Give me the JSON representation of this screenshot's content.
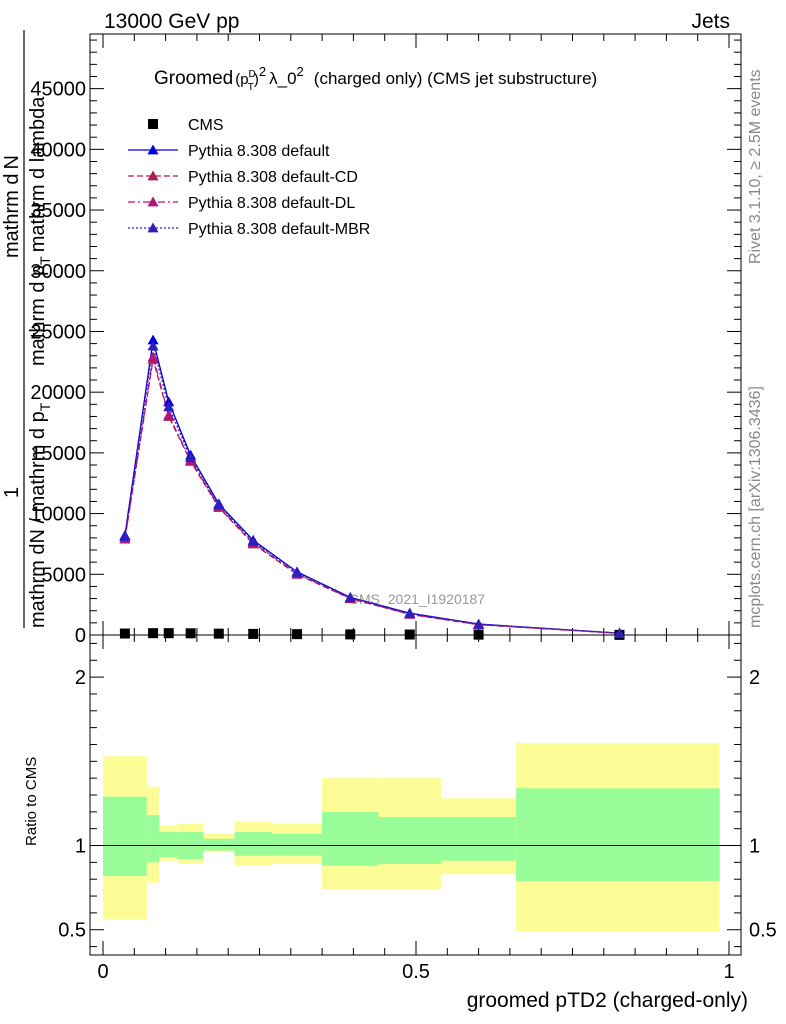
{
  "header": {
    "left": "13000 GeV pp",
    "right": "Jets"
  },
  "side": {
    "rivet": "Rivet 3.1.10, ≥ 2.5M events",
    "mcplots": "mcplots.cern.ch [arXiv:1306.3436]"
  },
  "watermark": "CMS_2021_I1920187",
  "chart_data": [
    {
      "type": "line",
      "panel": "main",
      "title": {
        "prefix": "Groomed",
        "p": "p",
        "sup_d": "D",
        "sub_t": "T",
        "sq": "2",
        "lambda": "λ_0",
        "lambda_exp": "2",
        "suffix": "(charged only) (CMS jet substructure)"
      },
      "ylabel": {
        "numer": "1",
        "denom": "mathrm dN / mathrm d p",
        "denom_sub": "T",
        "line2_a": "mathrm d",
        "line2_b": "N",
        "line3": "mathrm d p",
        "line3_sub": "T",
        "line3_b": "mathrm d lambda"
      },
      "xlim": [
        0,
        1
      ],
      "ylim": [
        0,
        49500
      ],
      "yticks": [
        0,
        5000,
        10000,
        15000,
        20000,
        25000,
        30000,
        35000,
        40000,
        45000
      ],
      "yticklabels": [
        "0",
        "5000",
        "10000",
        "15000",
        "20000",
        "25000",
        "30000",
        "35000",
        "40000",
        "45000"
      ],
      "legend_position": "top-left",
      "x": [
        0.035,
        0.08,
        0.105,
        0.14,
        0.185,
        0.24,
        0.31,
        0.395,
        0.49,
        0.6,
        0.825
      ],
      "series": [
        {
          "name": "CMS",
          "style": "data",
          "color": "#000000",
          "values": [
            120,
            150,
            150,
            140,
            110,
            90,
            70,
            50,
            40,
            30,
            10
          ]
        },
        {
          "name": "Pythia 8.308 default",
          "style": "solid",
          "color": "#0000dd",
          "values": [
            8200,
            24300,
            19200,
            14800,
            10800,
            7800,
            5200,
            3100,
            1800,
            900,
            150
          ]
        },
        {
          "name": "Pythia 8.308 default-CD",
          "style": "dash",
          "color": "#b01a55",
          "values": [
            7900,
            22700,
            18000,
            14300,
            10500,
            7500,
            5000,
            3000,
            1700,
            850,
            140
          ]
        },
        {
          "name": "Pythia 8.308 default-DL",
          "style": "dashdot",
          "color": "#b0157a",
          "values": [
            7950,
            22900,
            18100,
            14400,
            10600,
            7600,
            5050,
            3020,
            1720,
            860,
            145
          ]
        },
        {
          "name": "Pythia 8.308 default-MBR",
          "style": "dot",
          "color": "#3020bb",
          "values": [
            8100,
            23800,
            18800,
            14600,
            10700,
            7700,
            5150,
            3080,
            1780,
            880,
            150
          ]
        }
      ]
    },
    {
      "type": "area",
      "panel": "ratio",
      "ylabel": "Ratio to CMS",
      "xlabel": "groomed pTD2 (charged-only)",
      "xlim": [
        0,
        1
      ],
      "ylim": [
        0.35,
        2.25
      ],
      "xticks": [
        0,
        0.5,
        1
      ],
      "xticklabels": [
        "0",
        "0.5",
        "1"
      ],
      "yticks": [
        0.5,
        1,
        2
      ],
      "yticklabels": [
        "0.5",
        "1",
        "2"
      ],
      "reference": 1,
      "bins": [
        {
          "lo": 0.0,
          "hi": 0.07,
          "yel_lo": 0.56,
          "yel_hi": 1.53,
          "grn_lo": 0.82,
          "grn_hi": 1.29
        },
        {
          "lo": 0.07,
          "hi": 0.09,
          "yel_lo": 0.78,
          "yel_hi": 1.35,
          "grn_lo": 0.9,
          "grn_hi": 1.18
        },
        {
          "lo": 0.09,
          "hi": 0.12,
          "yel_lo": 0.91,
          "yel_hi": 1.12,
          "grn_lo": 0.93,
          "grn_hi": 1.08
        },
        {
          "lo": 0.12,
          "hi": 0.16,
          "yel_lo": 0.89,
          "yel_hi": 1.13,
          "grn_lo": 0.92,
          "grn_hi": 1.08
        },
        {
          "lo": 0.16,
          "hi": 0.21,
          "yel_lo": 0.96,
          "yel_hi": 1.07,
          "grn_lo": 0.97,
          "grn_hi": 1.04
        },
        {
          "lo": 0.21,
          "hi": 0.27,
          "yel_lo": 0.88,
          "yel_hi": 1.14,
          "grn_lo": 0.94,
          "grn_hi": 1.08
        },
        {
          "lo": 0.27,
          "hi": 0.35,
          "yel_lo": 0.89,
          "yel_hi": 1.13,
          "grn_lo": 0.94,
          "grn_hi": 1.07
        },
        {
          "lo": 0.35,
          "hi": 0.44,
          "yel_lo": 0.74,
          "yel_hi": 1.4,
          "grn_lo": 0.88,
          "grn_hi": 1.2
        },
        {
          "lo": 0.44,
          "hi": 0.54,
          "yel_lo": 0.74,
          "yel_hi": 1.4,
          "grn_lo": 0.89,
          "grn_hi": 1.17
        },
        {
          "lo": 0.54,
          "hi": 0.66,
          "yel_lo": 0.83,
          "yel_hi": 1.28,
          "grn_lo": 0.91,
          "grn_hi": 1.17
        },
        {
          "lo": 0.66,
          "hi": 0.985,
          "yel_lo": 0.49,
          "yel_hi": 1.61,
          "grn_lo": 0.79,
          "grn_hi": 1.34
        }
      ],
      "colors": {
        "yellow": "#fdfd98",
        "green": "#98fd98"
      }
    }
  ]
}
